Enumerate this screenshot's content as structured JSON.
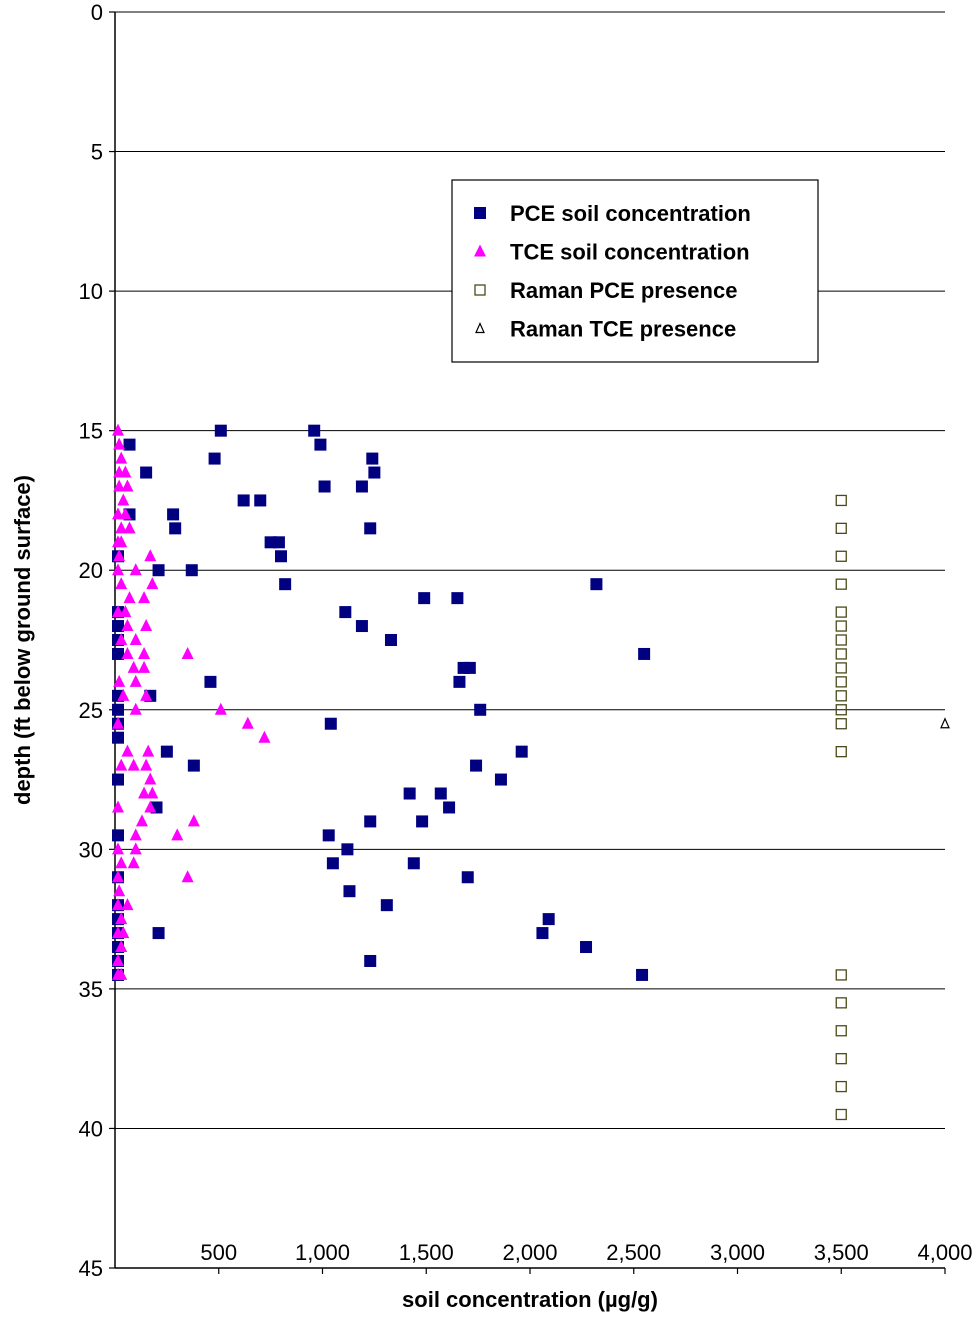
{
  "chart_data": {
    "type": "scatter",
    "title": "",
    "xlabel": "soil concentration (µg/g)",
    "ylabel": "depth (ft below ground surface)",
    "xlim": [
      0,
      4000
    ],
    "ylim": [
      0,
      45
    ],
    "y_inverted": true,
    "x_axis_position": "bottom",
    "x_ticks": [
      500,
      1000,
      1500,
      2000,
      2500,
      3000,
      3500,
      4000
    ],
    "x_tick_labels": [
      "500",
      "1,000",
      "1,500",
      "2,000",
      "2,500",
      "3,000",
      "3,500",
      "4,000"
    ],
    "y_ticks": [
      0,
      5,
      10,
      15,
      20,
      25,
      30,
      35,
      40,
      45
    ],
    "y_tick_labels": [
      "0",
      "5",
      "10",
      "15",
      "20",
      "25",
      "30",
      "35",
      "40",
      "45"
    ],
    "grid": "horizontal",
    "legend_position": "upper-right-inside",
    "series": [
      {
        "name": "PCE soil concentration",
        "marker": "filled-square",
        "color": "#000080",
        "points": [
          [
            510,
            15
          ],
          [
            960,
            15
          ],
          [
            70,
            15.5
          ],
          [
            990,
            15.5
          ],
          [
            480,
            16
          ],
          [
            1240,
            16
          ],
          [
            150,
            16.5
          ],
          [
            1250,
            16.5
          ],
          [
            620,
            17.5
          ],
          [
            700,
            17.5
          ],
          [
            1010,
            17
          ],
          [
            1190,
            17
          ],
          [
            70,
            18
          ],
          [
            280,
            18
          ],
          [
            290,
            18.5
          ],
          [
            1230,
            18.5
          ],
          [
            750,
            19
          ],
          [
            790,
            19
          ],
          [
            800,
            19.5
          ],
          [
            0,
            19.5
          ],
          [
            210,
            20
          ],
          [
            370,
            20
          ],
          [
            820,
            20.5
          ],
          [
            2320,
            20.5
          ],
          [
            1490,
            21
          ],
          [
            1650,
            21
          ],
          [
            1110,
            21.5
          ],
          [
            0,
            21.5
          ],
          [
            1190,
            22
          ],
          [
            0,
            22
          ],
          [
            1330,
            22.5
          ],
          [
            0,
            22.5
          ],
          [
            2550,
            23
          ],
          [
            0,
            23
          ],
          [
            1680,
            23.5
          ],
          [
            1710,
            23.5
          ],
          [
            460,
            24
          ],
          [
            1660,
            24
          ],
          [
            170,
            24.5
          ],
          [
            0,
            24.5
          ],
          [
            1760,
            25
          ],
          [
            0,
            25
          ],
          [
            1040,
            25.5
          ],
          [
            0,
            25.5
          ],
          [
            0,
            26
          ],
          [
            250,
            26.5
          ],
          [
            1960,
            26.5
          ],
          [
            0,
            27.5
          ],
          [
            380,
            27
          ],
          [
            1740,
            27
          ],
          [
            1860,
            27.5
          ],
          [
            1420,
            28
          ],
          [
            1570,
            28
          ],
          [
            200,
            28.5
          ],
          [
            1610,
            28.5
          ],
          [
            1230,
            29
          ],
          [
            1480,
            29
          ],
          [
            1030,
            29.5
          ],
          [
            0,
            29.5
          ],
          [
            1120,
            30
          ],
          [
            1050,
            30.5
          ],
          [
            1440,
            30.5
          ],
          [
            1700,
            31
          ],
          [
            0,
            31
          ],
          [
            1130,
            31.5
          ],
          [
            1310,
            32
          ],
          [
            0,
            32
          ],
          [
            2090,
            32.5
          ],
          [
            0,
            32.5
          ],
          [
            210,
            33
          ],
          [
            2060,
            33
          ],
          [
            0,
            33
          ],
          [
            2270,
            33.5
          ],
          [
            0,
            33.5
          ],
          [
            1230,
            34
          ],
          [
            0,
            34
          ],
          [
            2540,
            34.5
          ],
          [
            0,
            34.5
          ]
        ]
      },
      {
        "name": "TCE soil concentration",
        "marker": "filled-triangle",
        "color": "#ff00ff",
        "points": [
          [
            0,
            15
          ],
          [
            20,
            15.5
          ],
          [
            30,
            16
          ],
          [
            20,
            16.5
          ],
          [
            50,
            16.5
          ],
          [
            20,
            17
          ],
          [
            60,
            17
          ],
          [
            40,
            17.5
          ],
          [
            10,
            18
          ],
          [
            50,
            18
          ],
          [
            70,
            18.5
          ],
          [
            30,
            18.5
          ],
          [
            10,
            19
          ],
          [
            30,
            19
          ],
          [
            20,
            19.5
          ],
          [
            170,
            19.5
          ],
          [
            10,
            20
          ],
          [
            100,
            20
          ],
          [
            180,
            20.5
          ],
          [
            30,
            20.5
          ],
          [
            70,
            21
          ],
          [
            140,
            21
          ],
          [
            50,
            21.5
          ],
          [
            10,
            21.5
          ],
          [
            60,
            22
          ],
          [
            150,
            22
          ],
          [
            100,
            22.5
          ],
          [
            30,
            22.5
          ],
          [
            60,
            23
          ],
          [
            140,
            23
          ],
          [
            350,
            23
          ],
          [
            90,
            23.5
          ],
          [
            140,
            23.5
          ],
          [
            20,
            24
          ],
          [
            100,
            24
          ],
          [
            150,
            24.5
          ],
          [
            40,
            24.5
          ],
          [
            100,
            25
          ],
          [
            510,
            25
          ],
          [
            10,
            25.5
          ],
          [
            640,
            25.5
          ],
          [
            720,
            26
          ],
          [
            60,
            26.5
          ],
          [
            160,
            26.5
          ],
          [
            30,
            27
          ],
          [
            90,
            27
          ],
          [
            150,
            27
          ],
          [
            170,
            27.5
          ],
          [
            140,
            28
          ],
          [
            180,
            28
          ],
          [
            170,
            28.5
          ],
          [
            0,
            28.5
          ],
          [
            130,
            29
          ],
          [
            380,
            29
          ],
          [
            100,
            29.5
          ],
          [
            300,
            29.5
          ],
          [
            100,
            30
          ],
          [
            0,
            30
          ],
          [
            90,
            30.5
          ],
          [
            30,
            30.5
          ],
          [
            350,
            31
          ],
          [
            0,
            31
          ],
          [
            20,
            31.5
          ],
          [
            60,
            32
          ],
          [
            10,
            32
          ],
          [
            30,
            32.5
          ],
          [
            40,
            33
          ],
          [
            10,
            33
          ],
          [
            30,
            33.5
          ],
          [
            0,
            34
          ],
          [
            30,
            34.5
          ],
          [
            0,
            34.5
          ]
        ]
      },
      {
        "name": "Raman PCE presence",
        "marker": "open-square",
        "color": "#4a4a1a",
        "points": [
          [
            3500,
            17.5
          ],
          [
            3500,
            18.5
          ],
          [
            3500,
            19.5
          ],
          [
            3500,
            20.5
          ],
          [
            3500,
            21.5
          ],
          [
            3500,
            22
          ],
          [
            3500,
            22.5
          ],
          [
            3500,
            23
          ],
          [
            3500,
            23.5
          ],
          [
            3500,
            24
          ],
          [
            3500,
            24.5
          ],
          [
            3500,
            25
          ],
          [
            3500,
            25.5
          ],
          [
            3500,
            26.5
          ],
          [
            3500,
            34.5
          ],
          [
            3500,
            35.5
          ],
          [
            3500,
            36.5
          ],
          [
            3500,
            37.5
          ],
          [
            3500,
            38.5
          ],
          [
            3500,
            39.5
          ]
        ]
      },
      {
        "name": "Raman TCE presence",
        "marker": "open-triangle",
        "color": "#000000",
        "points": [
          [
            4000,
            25.5
          ]
        ]
      }
    ]
  }
}
